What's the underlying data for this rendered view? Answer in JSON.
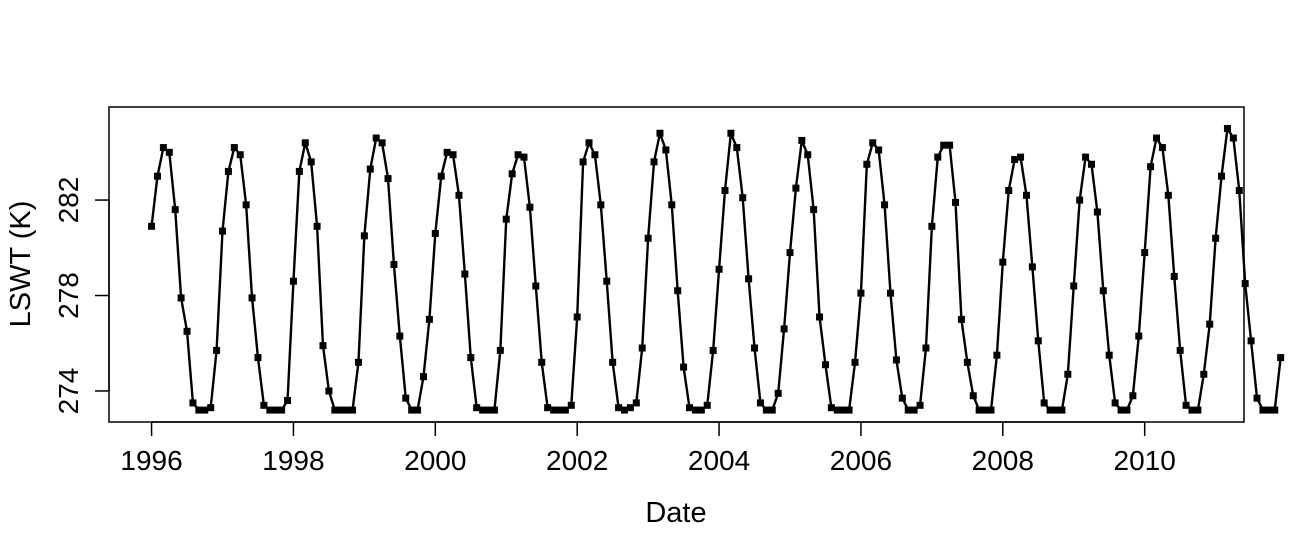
{
  "chart_data": {
    "type": "line",
    "title": "",
    "xlabel": "Date",
    "ylabel": "LSWT (K)",
    "xlim": [
      1995.4,
      2011.4
    ],
    "ylim": [
      272.7,
      285.9
    ],
    "x_ticks": [
      1996,
      1998,
      2000,
      2002,
      2004,
      2006,
      2008,
      2010
    ],
    "x_tick_labels": [
      "1996",
      "1998",
      "2000",
      "2002",
      "2004",
      "2006",
      "2008",
      "2010"
    ],
    "y_ticks": [
      274,
      278,
      282
    ],
    "y_tick_labels": [
      "274",
      "278",
      "282"
    ],
    "grid": false,
    "legend": "none",
    "line_color": "#000000",
    "marker": "filled-square",
    "series": [
      {
        "x_start": 1996.0,
        "x_step_months": 1,
        "values": [
          280.9,
          283.0,
          284.2,
          284.0,
          281.6,
          277.9,
          276.5,
          273.5,
          273.2,
          273.2,
          273.3,
          275.7,
          280.7,
          283.2,
          284.2,
          283.9,
          281.8,
          277.9,
          275.4,
          273.4,
          273.2,
          273.2,
          273.2,
          273.6,
          278.6,
          283.2,
          284.4,
          283.6,
          280.9,
          275.9,
          274.0,
          273.2,
          273.2,
          273.2,
          273.2,
          275.2,
          280.5,
          283.3,
          284.6,
          284.4,
          282.9,
          279.3,
          276.3,
          273.7,
          273.2,
          273.2,
          274.6,
          277.0,
          280.6,
          283.0,
          284.0,
          283.9,
          282.2,
          278.9,
          275.4,
          273.3,
          273.2,
          273.2,
          273.2,
          275.7,
          281.2,
          283.1,
          283.9,
          283.8,
          281.7,
          278.4,
          275.2,
          273.3,
          273.2,
          273.2,
          273.2,
          273.4,
          277.1,
          283.6,
          284.4,
          283.9,
          281.8,
          278.6,
          275.2,
          273.3,
          273.2,
          273.3,
          273.5,
          275.8,
          280.4,
          283.6,
          284.8,
          284.1,
          281.8,
          278.2,
          275.0,
          273.3,
          273.2,
          273.2,
          273.4,
          275.7,
          279.1,
          282.4,
          284.8,
          284.2,
          282.1,
          278.7,
          275.8,
          273.5,
          273.2,
          273.2,
          273.9,
          276.6,
          279.8,
          282.5,
          284.5,
          283.9,
          281.6,
          277.1,
          275.1,
          273.3,
          273.2,
          273.2,
          273.2,
          275.2,
          278.1,
          283.5,
          284.4,
          284.1,
          281.8,
          278.1,
          275.3,
          273.7,
          273.2,
          273.2,
          273.4,
          275.8,
          280.9,
          283.8,
          284.3,
          284.3,
          281.9,
          277.0,
          275.2,
          273.8,
          273.2,
          273.2,
          273.2,
          275.5,
          279.4,
          282.4,
          283.7,
          283.8,
          282.2,
          279.2,
          276.1,
          273.5,
          273.2,
          273.2,
          273.2,
          274.7,
          278.4,
          282.0,
          283.8,
          283.5,
          281.5,
          278.2,
          275.5,
          273.5,
          273.2,
          273.2,
          273.8,
          276.3,
          279.8,
          283.4,
          284.6,
          284.2,
          282.2,
          278.8,
          275.7,
          273.4,
          273.2,
          273.2,
          274.7,
          276.8,
          280.4,
          283.0,
          285.0,
          284.6,
          282.4,
          278.5,
          276.1,
          273.7,
          273.2,
          273.2,
          273.2,
          275.4
        ]
      }
    ]
  }
}
